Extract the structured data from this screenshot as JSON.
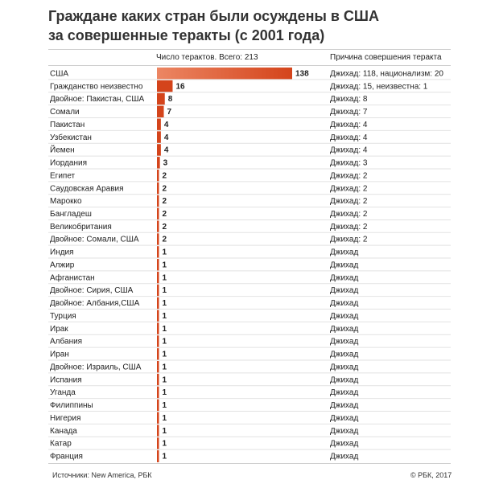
{
  "header": {
    "title_line1": "Граждане каких стран были осуждены в США",
    "title_line2": "за совершенные теракты (с 2001 года)",
    "count_column": "Число терактов. Всего: 213",
    "reason_column": "Причина совершения теракта"
  },
  "footer": {
    "source": "Источники: New America, РБК",
    "copyright": "© РБК, 2017"
  },
  "colors": {
    "bar": "#d4441b",
    "bar_light": "#ec8663",
    "separator": "#e2e2e2",
    "text": "#222222"
  },
  "chart_data": {
    "type": "bar",
    "orientation": "horizontal",
    "grid": false,
    "categories": [
      "США",
      "Гражданство неизвестно",
      "Двойное: Пакистан, США",
      "Сомали",
      "Пакистан",
      "Узбекистан",
      "Йемен",
      "Иордания",
      "Египет",
      "Саудовская Аравия",
      "Марокко",
      "Бангладеш",
      "Великобритания",
      "Двойное: Сомали, США",
      "Индия",
      "Алжир",
      "Афганистан",
      "Двойное: Сирия, США",
      "Двойное: Албания,США",
      "Турция",
      "Ирак",
      "Албания",
      "Иран",
      "Двойное: Израиль, США",
      "Испания",
      "Уганда",
      "Филиппины",
      "Нигерия",
      "Канада",
      "Катар",
      "Франция"
    ],
    "values": [
      138,
      16,
      8,
      7,
      4,
      4,
      4,
      3,
      2,
      2,
      2,
      2,
      2,
      2,
      1,
      1,
      1,
      1,
      1,
      1,
      1,
      1,
      1,
      1,
      1,
      1,
      1,
      1,
      1,
      1,
      1
    ],
    "value_labels": [
      "138",
      "16",
      "8",
      "7",
      "4",
      "4",
      "4",
      "3",
      "2",
      "2",
      "2",
      "2",
      "2",
      "2",
      "1",
      "1",
      "1",
      "1",
      "1",
      "1",
      "1",
      "1",
      "1",
      "1",
      "1",
      "1",
      "1",
      "1",
      "1",
      "1",
      "1"
    ],
    "reasons": [
      "Джихад: 118, национализм: 20",
      "Джихад: 15, неизвестна: 1",
      "Джихад: 8",
      "Джихад: 7",
      "Джихад: 4",
      "Джихад: 4",
      "Джихад: 4",
      "Джихад: 3",
      "Джихад: 2",
      "Джихад: 2",
      "Джихад: 2",
      "Джихад: 2",
      "Джихад: 2",
      "Джихад: 2",
      "Джихад",
      "Джихад",
      "Джихад",
      "Джихад",
      "Джихад",
      "Джихад",
      "Джихад",
      "Джихад",
      "Джихад",
      "Джихад",
      "Джихад",
      "Джихад",
      "Джихад",
      "Джихад",
      "Джихад",
      "Джихад",
      "Джихад"
    ],
    "xlim": [
      0,
      138
    ]
  }
}
